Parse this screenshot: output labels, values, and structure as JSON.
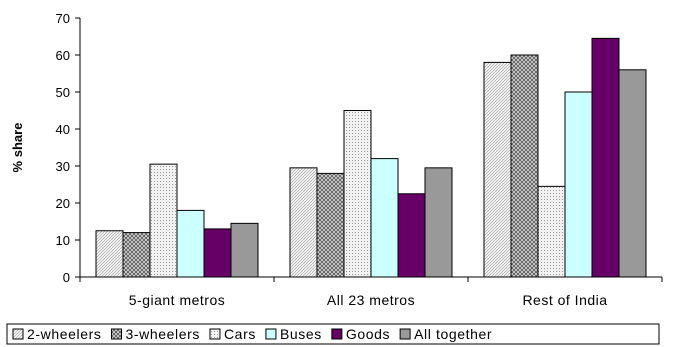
{
  "chart_data": {
    "type": "bar",
    "title": "",
    "xlabel": "",
    "ylabel": "% share",
    "ylim": [
      0,
      70
    ],
    "yticks": [
      0,
      10,
      20,
      30,
      40,
      50,
      60,
      70
    ],
    "grid": false,
    "legend_position": "bottom",
    "categories": [
      "5-giant metros",
      "All 23 metros",
      "Rest of India"
    ],
    "series": [
      {
        "name": "2-wheelers",
        "values": [
          12.5,
          29.5,
          58
        ],
        "pattern": "fine-diagonal",
        "color": "#e8e8e8"
      },
      {
        "name": "3-wheelers",
        "values": [
          12,
          28,
          60
        ],
        "pattern": "crosshatch",
        "color": "#9a9a9a"
      },
      {
        "name": "Cars",
        "values": [
          30.5,
          45,
          24.5
        ],
        "pattern": "dots",
        "color": "#e0e0e0"
      },
      {
        "name": "Buses",
        "values": [
          18,
          32,
          50
        ],
        "pattern": "solid",
        "color": "#ccffff"
      },
      {
        "name": "Goods",
        "values": [
          13,
          22.5,
          64.5
        ],
        "pattern": "solid",
        "color": "#660066"
      },
      {
        "name": "All together",
        "values": [
          14.5,
          29.5,
          56
        ],
        "pattern": "solid",
        "color": "#999999"
      }
    ]
  }
}
